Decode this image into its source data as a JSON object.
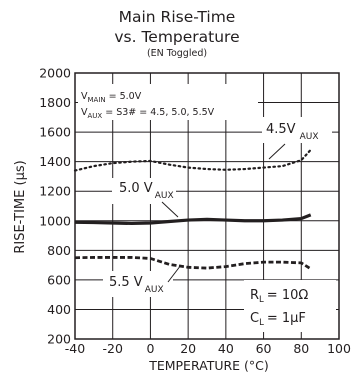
{
  "header": {
    "title_line1": "Main Rise-Time",
    "title_line2": "vs. Temperature",
    "subtitle": "(EN Toggled)"
  },
  "annotations": {
    "v_main": "V",
    "v_main_sub": "MAIN",
    "v_main_val": "= 5.0V",
    "v_aux": "V",
    "v_aux_sub": "AUX",
    "v_aux_val": "= S3# = 4.5, 5.0, 5.5V",
    "rl": "R",
    "rl_sub": "L",
    "rl_val": "= 10Ω",
    "cl": "C",
    "cl_sub": "L",
    "cl_val": "= 1µF",
    "label_45": "4.5V",
    "label_50": "5.0 V",
    "label_55": "5.5 V",
    "aux_sub": "AUX"
  },
  "chart_data": {
    "type": "line",
    "xlabel": "TEMPERATURE (°C)",
    "ylabel": "RISE-TIME (µs)",
    "xlim": [
      -40,
      100
    ],
    "ylim": [
      200,
      2000
    ],
    "xticks": [
      -40,
      -20,
      0,
      20,
      40,
      60,
      80,
      100
    ],
    "yticks": [
      200,
      400,
      600,
      800,
      1000,
      1200,
      1400,
      1600,
      1800,
      2000
    ],
    "grid": true,
    "series": [
      {
        "name": "4.5V AUX",
        "style": "dotted",
        "x": [
          -40,
          -30,
          -20,
          -10,
          0,
          10,
          20,
          30,
          40,
          50,
          60,
          70,
          75,
          80,
          85
        ],
        "y": [
          1340,
          1370,
          1390,
          1400,
          1405,
          1380,
          1360,
          1350,
          1345,
          1350,
          1360,
          1370,
          1390,
          1410,
          1480
        ]
      },
      {
        "name": "5.0 V AUX",
        "style": "solid",
        "x": [
          -40,
          -30,
          -20,
          -10,
          0,
          10,
          20,
          30,
          40,
          50,
          60,
          70,
          80,
          85
        ],
        "y": [
          990,
          988,
          985,
          982,
          985,
          995,
          1005,
          1010,
          1005,
          1000,
          1000,
          1005,
          1015,
          1040
        ]
      },
      {
        "name": "5.5 V AUX",
        "style": "dashed",
        "x": [
          -40,
          -30,
          -20,
          -10,
          0,
          5,
          10,
          20,
          30,
          40,
          50,
          60,
          70,
          80,
          85
        ],
        "y": [
          750,
          752,
          752,
          752,
          745,
          725,
          705,
          685,
          680,
          690,
          710,
          720,
          720,
          715,
          675
        ]
      }
    ]
  }
}
